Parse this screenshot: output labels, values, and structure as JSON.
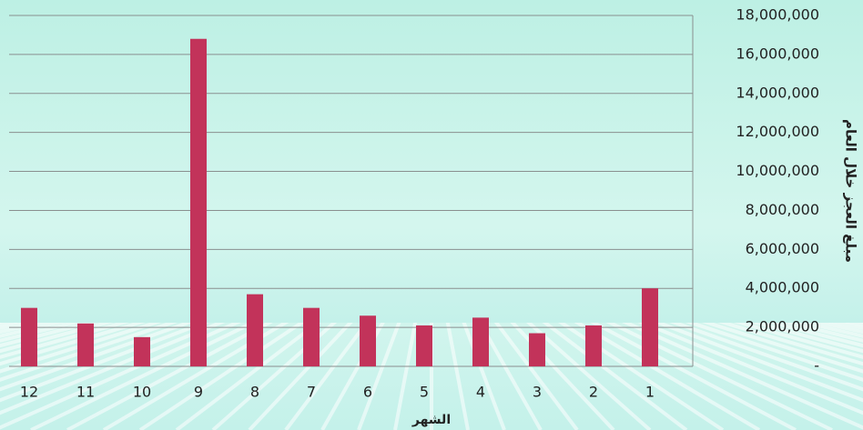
{
  "chart_data": {
    "type": "bar",
    "xlabel": "الشهر",
    "ylabel": "مبلغ العجز خلال العام",
    "categories": [
      "12",
      "11",
      "10",
      "9",
      "8",
      "7",
      "6",
      "5",
      "4",
      "3",
      "2",
      "1"
    ],
    "values": [
      3000000,
      2200000,
      1500000,
      16800000,
      3700000,
      3000000,
      2600000,
      2100000,
      2500000,
      1700000,
      2100000,
      4000000
    ],
    "color": "#c2335a",
    "ylim": [
      0,
      18000000
    ],
    "yticks": [
      {
        "value": 0,
        "label": "-"
      },
      {
        "value": 2000000,
        "label": "2,000,000"
      },
      {
        "value": 4000000,
        "label": "4,000,000"
      },
      {
        "value": 6000000,
        "label": "6,000,000"
      },
      {
        "value": 8000000,
        "label": "8,000,000"
      },
      {
        "value": 10000000,
        "label": "10,000,000"
      },
      {
        "value": 12000000,
        "label": "12,000,000"
      },
      {
        "value": 14000000,
        "label": "14,000,000"
      },
      {
        "value": 16000000,
        "label": "16,000,000"
      },
      {
        "value": 18000000,
        "label": "18,000,000"
      }
    ],
    "grid": true
  }
}
